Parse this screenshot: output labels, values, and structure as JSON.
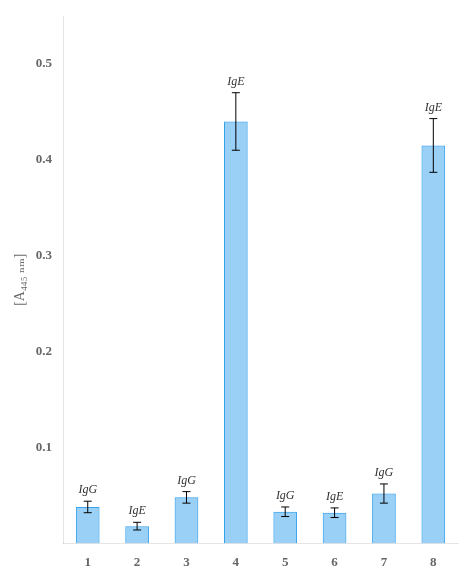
{
  "chart_data": {
    "type": "bar",
    "categories": [
      "1",
      "2",
      "3",
      "4",
      "5",
      "6",
      "7",
      "8"
    ],
    "values": [
      0.038,
      0.018,
      0.048,
      0.44,
      0.033,
      0.032,
      0.052,
      0.415
    ],
    "errors": [
      0.006,
      0.004,
      0.006,
      0.03,
      0.005,
      0.005,
      0.01,
      0.028
    ],
    "annotations": [
      "IgG",
      "IgE",
      "IgG",
      "IgE",
      "IgG",
      "IgE",
      "IgG",
      "IgE"
    ],
    "ylabel": "[A₄₄₅ ₙₘ]",
    "ylim": [
      0,
      0.55
    ],
    "yticks": [
      0.1,
      0.2,
      0.3,
      0.4,
      0.5
    ],
    "grid": false
  }
}
